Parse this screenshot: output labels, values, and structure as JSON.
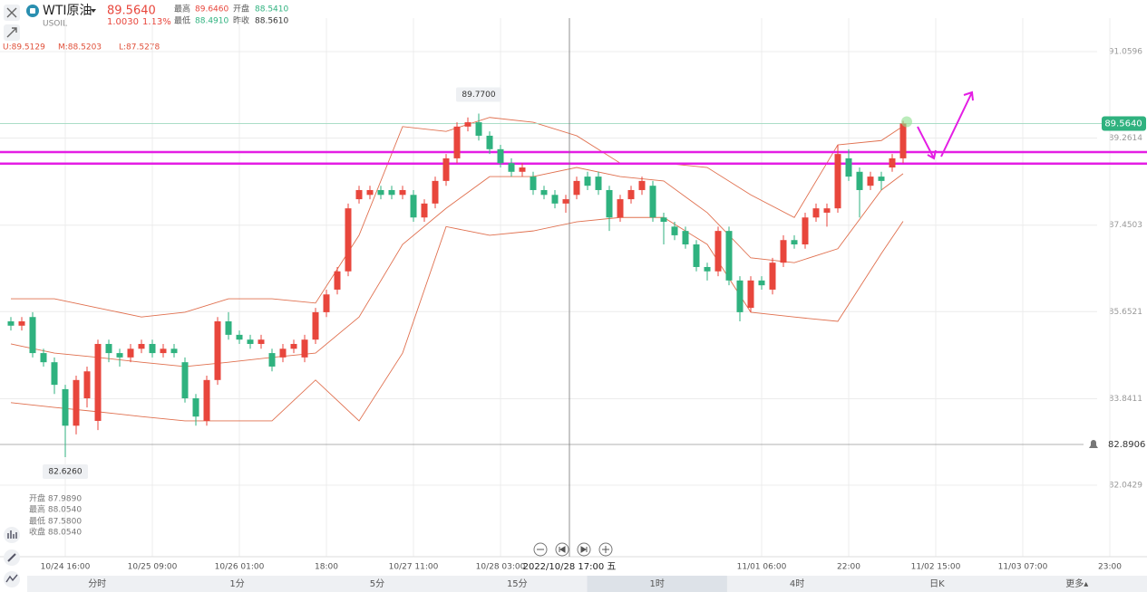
{
  "header": {
    "name": "WTI原油",
    "symbol": "USOIL",
    "price": "89.5640",
    "change": "1.0030",
    "change_pct": "1.13%",
    "stats": [
      {
        "label": "最高",
        "value": "89.6460"
      },
      {
        "label": "开盘",
        "value": "88.5410"
      },
      {
        "label": "最低",
        "value": "88.4910"
      },
      {
        "label": "昨收",
        "value": "88.5610"
      }
    ]
  },
  "indicator": [
    "U:89.5129",
    "M:88.5203",
    "L:87.5278"
  ],
  "crosshair": "2022/10/28 17:00 五",
  "tooltip": [
    "开盘 87.9890",
    "最高 88.0540",
    "最低 87.5800",
    "收盘 88.0540"
  ],
  "tabs": {
    "items": [
      "分时",
      "1分",
      "5分",
      "15分",
      "1时",
      "4时",
      "日K",
      "更多▴"
    ],
    "selected": 4
  },
  "chart_data": {
    "type": "candlestick",
    "up_color": "#e8463c",
    "down_color": "#2fb27f",
    "grid": true,
    "ylim": [
      80.556,
      91.756
    ],
    "yticks": [
      91.0596,
      89.2614,
      87.4503,
      85.6521,
      83.8411,
      82.0429
    ],
    "categories": [
      null,
      null,
      null,
      null,
      null,
      "10/24 16:00",
      null,
      null,
      null,
      null,
      null,
      null,
      null,
      "10/25 09:00",
      null,
      null,
      null,
      null,
      null,
      null,
      null,
      "10/26 01:00",
      null,
      null,
      null,
      null,
      null,
      null,
      null,
      "18:00",
      null,
      null,
      null,
      null,
      null,
      null,
      null,
      "10/27 11:00",
      null,
      null,
      null,
      null,
      null,
      null,
      null,
      "10/28 03:00",
      null,
      null,
      null,
      null,
      null,
      null,
      null,
      null,
      null,
      null,
      null,
      null,
      null,
      null,
      null,
      null,
      null,
      null,
      null,
      null,
      null,
      null,
      null,
      "11/01 06:00",
      null,
      null,
      null,
      null,
      null,
      null,
      null,
      "22:00",
      null,
      null,
      null,
      null,
      null,
      null,
      null,
      "11/02 15:00",
      null,
      null,
      null,
      null,
      null,
      null,
      null,
      "11/03 07:00",
      null,
      null,
      null,
      null,
      null,
      null,
      null,
      "23:00",
      null,
      null
    ],
    "open": [
      85.45,
      85.36,
      85.54,
      84.79,
      84.6,
      84.04,
      83.28,
      83.85,
      83.38,
      84.98,
      84.79,
      84.7,
      84.88,
      84.98,
      84.79,
      84.88,
      84.6,
      83.85,
      83.38,
      84.23,
      85.45,
      85.17,
      85.07,
      84.98,
      84.79,
      84.7,
      84.88,
      84.7,
      85.07,
      85.64,
      86.11,
      86.49,
      87.99,
      88.08,
      88.18,
      88.18,
      88.08,
      88.08,
      87.61,
      87.9,
      88.37,
      88.84,
      89.5,
      89.59,
      89.31,
      89.03,
      88.74,
      88.56,
      88.46,
      88.18,
      88.08,
      87.9,
      88.08,
      88.46,
      88.46,
      88.18,
      87.61,
      87.99,
      88.18,
      88.27,
      87.61,
      87.42,
      87.33,
      87.05,
      86.58,
      86.49,
      87.33,
      86.3,
      85.73,
      86.3,
      86.11,
      86.67,
      87.14,
      87.05,
      87.61,
      87.71,
      87.8,
      88.84,
      88.56,
      88.27,
      88.46,
      88.65,
      88.84,
      null,
      null,
      null,
      null,
      null,
      null,
      null,
      null,
      null,
      null,
      null,
      null,
      null,
      null,
      null,
      null,
      null,
      null,
      null,
      null,
      null
    ],
    "high": [
      85.54,
      85.54,
      85.64,
      84.88,
      84.7,
      84.13,
      84.32,
      84.51,
      85.07,
      85.07,
      84.88,
      84.98,
      85.07,
      85.07,
      84.98,
      84.98,
      84.7,
      83.94,
      84.32,
      85.54,
      85.64,
      85.26,
      85.17,
      85.17,
      84.88,
      84.98,
      85.07,
      85.17,
      85.73,
      86.11,
      86.58,
      87.9,
      88.27,
      88.27,
      88.27,
      88.27,
      88.27,
      88.18,
      87.99,
      88.46,
      88.93,
      89.59,
      89.69,
      89.77,
      89.4,
      89.12,
      88.84,
      88.74,
      88.56,
      88.27,
      88.18,
      88.08,
      88.46,
      88.56,
      88.56,
      88.27,
      88.08,
      88.27,
      88.46,
      88.37,
      87.71,
      87.52,
      87.42,
      87.14,
      86.67,
      87.42,
      87.42,
      86.39,
      86.39,
      86.39,
      86.77,
      87.24,
      87.24,
      87.71,
      87.9,
      87.9,
      89.12,
      89.03,
      88.65,
      88.56,
      88.56,
      88.93,
      89.62,
      null,
      null,
      null,
      null,
      null,
      null,
      null,
      null,
      null,
      null,
      null,
      null,
      null,
      null,
      null,
      null,
      null,
      null,
      null,
      null,
      null
    ],
    "low": [
      85.26,
      85.26,
      84.7,
      84.51,
      83.94,
      82.626,
      83.1,
      83.66,
      83.19,
      84.6,
      84.51,
      84.6,
      84.79,
      84.7,
      84.7,
      84.7,
      83.76,
      83.28,
      83.28,
      84.13,
      85.07,
      84.98,
      84.88,
      84.88,
      84.41,
      84.6,
      84.79,
      84.6,
      84.98,
      85.54,
      86.01,
      86.39,
      87.9,
      87.99,
      87.99,
      87.99,
      87.99,
      87.52,
      87.52,
      87.8,
      88.27,
      88.74,
      89.4,
      89.21,
      88.93,
      88.65,
      88.46,
      88.46,
      88.08,
      87.99,
      87.8,
      87.71,
      87.99,
      88.18,
      88.08,
      87.33,
      87.52,
      87.9,
      88.08,
      87.52,
      87.05,
      87.14,
      86.96,
      86.49,
      86.3,
      86.39,
      86.2,
      85.45,
      85.64,
      86.11,
      86.01,
      86.58,
      86.96,
      86.96,
      87.52,
      87.42,
      87.71,
      88.37,
      87.61,
      88.18,
      88.18,
      88.56,
      88.74,
      null,
      null,
      null,
      null,
      null,
      null,
      null,
      null,
      null,
      null,
      null,
      null,
      null,
      null,
      null,
      null,
      null,
      null,
      null,
      null,
      null
    ],
    "close": [
      85.36,
      85.45,
      84.79,
      84.6,
      84.13,
      83.28,
      84.23,
      84.41,
      84.98,
      84.79,
      84.7,
      84.88,
      84.98,
      84.79,
      84.88,
      84.79,
      83.85,
      83.47,
      84.23,
      85.45,
      85.17,
      85.07,
      84.98,
      85.07,
      84.51,
      84.88,
      84.98,
      85.07,
      85.64,
      86.01,
      86.49,
      87.8,
      88.18,
      88.18,
      88.08,
      88.08,
      88.18,
      87.61,
      87.9,
      88.37,
      88.84,
      89.5,
      89.59,
      89.31,
      89.03,
      88.74,
      88.56,
      88.65,
      88.18,
      88.08,
      87.9,
      87.99,
      88.37,
      88.27,
      88.18,
      87.61,
      87.99,
      88.18,
      88.37,
      87.61,
      87.52,
      87.24,
      87.05,
      86.58,
      86.49,
      87.33,
      86.3,
      85.64,
      86.3,
      86.2,
      86.67,
      87.14,
      87.05,
      87.61,
      87.8,
      87.8,
      88.93,
      88.46,
      88.18,
      88.46,
      88.37,
      88.84,
      89.564,
      null,
      null,
      null,
      null,
      null,
      null,
      null,
      null,
      null,
      null,
      null,
      null,
      null,
      null,
      null,
      null,
      null,
      null,
      null,
      null,
      null
    ],
    "bands": {
      "color": "#e0704f",
      "x": [
        0,
        4,
        8,
        12,
        16,
        20,
        24,
        28,
        32,
        36,
        40,
        44,
        48,
        52,
        56,
        60,
        64,
        68,
        72,
        76,
        80,
        82
      ],
      "upper": [
        85.92,
        85.92,
        85.73,
        85.54,
        85.64,
        85.92,
        85.92,
        85.83,
        87.24,
        89.5,
        89.4,
        89.69,
        89.59,
        89.31,
        88.74,
        88.74,
        88.65,
        88.08,
        87.61,
        89.12,
        89.21,
        89.51
      ],
      "middle": [
        84.98,
        84.79,
        84.7,
        84.6,
        84.51,
        84.6,
        84.7,
        84.79,
        85.54,
        87.05,
        87.8,
        88.46,
        88.46,
        88.65,
        88.46,
        88.37,
        87.71,
        86.77,
        86.67,
        86.96,
        88.18,
        88.52
      ],
      "lower": [
        83.76,
        83.66,
        83.57,
        83.47,
        83.38,
        83.38,
        83.38,
        84.23,
        83.38,
        84.79,
        87.42,
        87.24,
        87.33,
        87.52,
        87.61,
        87.61,
        87.05,
        85.64,
        85.54,
        85.45,
        86.86,
        87.53
      ]
    },
    "high_marker": {
      "value": 89.77,
      "label": "89.7700"
    },
    "low_marker": {
      "value": 82.626,
      "label": "82.6260"
    },
    "last_price": {
      "value": 89.564,
      "label": "89.5640"
    },
    "alert_line": {
      "value": 82.8906,
      "label": "82.8906"
    },
    "levels": {
      "color": "#e41ee4",
      "values": [
        88.97,
        88.73
      ]
    }
  }
}
